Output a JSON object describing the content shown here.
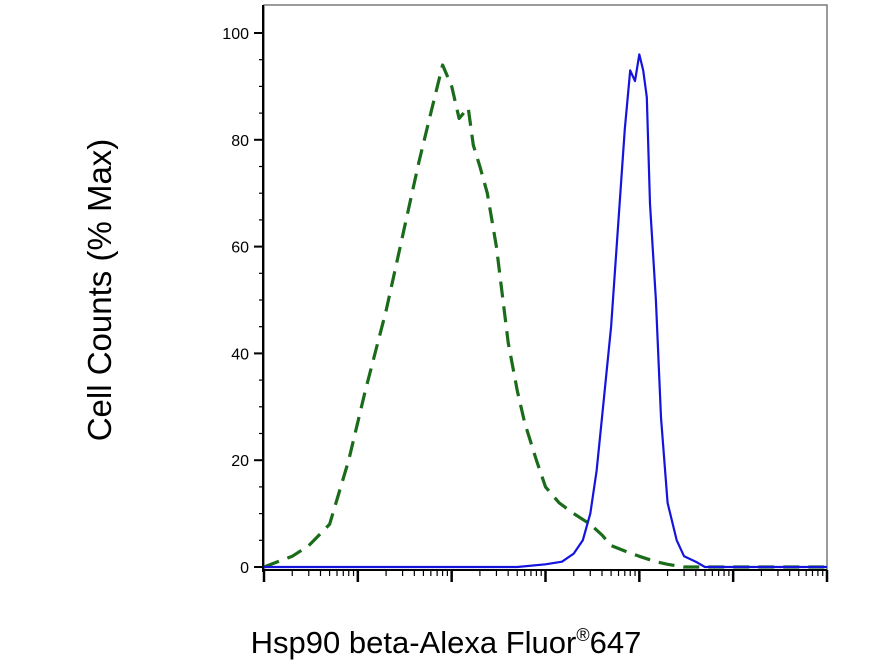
{
  "chart_data": {
    "type": "line",
    "title": "",
    "ylabel": "Cell Counts (% Max)",
    "xlabel_main": "Hsp90 beta-Alexa Fluor",
    "xlabel_reg": "®",
    "xlabel_tail": "647",
    "x_scale": "log",
    "xlim": [
      1,
      1000000
    ],
    "ylim": [
      0,
      100
    ],
    "yticks": [
      "0",
      "20",
      "40",
      "60",
      "80",
      "100"
    ],
    "grid": false,
    "series": [
      {
        "color": "#1a6b1a",
        "style": "dashed",
        "x": [
          1,
          1.4,
          2,
          3,
          5,
          8,
          12,
          20,
          30,
          45,
          60,
          80,
          100,
          120,
          150,
          170,
          200,
          240,
          300,
          400,
          500,
          600,
          800,
          1000,
          1400,
          2000,
          3000,
          4000,
          5000,
          7000,
          10000,
          15000,
          20000,
          30000,
          50000,
          80000,
          150000,
          300000,
          1000000
        ],
        "y": [
          0,
          1,
          2,
          4,
          8,
          20,
          33,
          48,
          62,
          76,
          85,
          94,
          90,
          84,
          86,
          79,
          75,
          70,
          60,
          42,
          33,
          27,
          20,
          15,
          12,
          10,
          8,
          6,
          4,
          3,
          2,
          1,
          0.5,
          0,
          0,
          0,
          0,
          0,
          0
        ]
      },
      {
        "color": "#1414dc",
        "style": "solid",
        "x": [
          1,
          100,
          500,
          1000,
          1500,
          2000,
          2500,
          3000,
          3500,
          4000,
          5000,
          6000,
          7000,
          8000,
          9000,
          10000,
          11000,
          12000,
          13000,
          15000,
          17000,
          20000,
          25000,
          30000,
          40000,
          50000,
          70000,
          100000,
          300000,
          1000000
        ],
        "y": [
          0,
          0,
          0,
          0.5,
          1,
          2.5,
          5,
          10,
          18,
          28,
          45,
          65,
          82,
          93,
          91,
          96,
          93,
          88,
          68,
          50,
          28,
          12,
          5,
          2,
          1,
          0,
          0,
          0,
          0,
          0
        ]
      }
    ]
  }
}
